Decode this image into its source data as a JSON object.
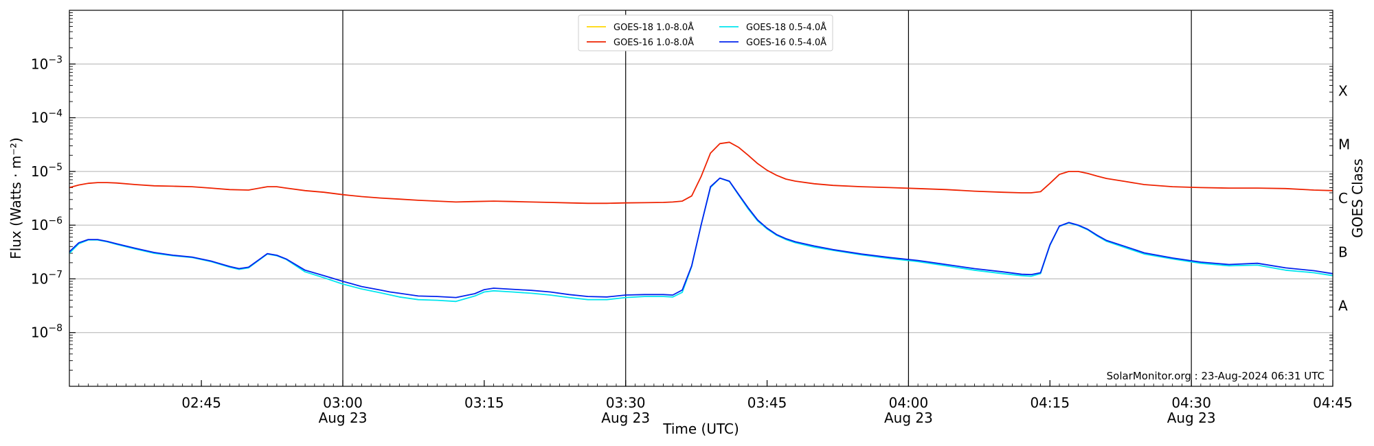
{
  "chart_data": {
    "type": "line",
    "xlabel": "Time (UTC)",
    "ylabel": "Flux (Watts · m⁻²)",
    "y2label": "GOES Class",
    "yscale": "log",
    "xlim": [
      "02:31",
      "04:45"
    ],
    "ylim": [
      1e-09,
      0.01
    ],
    "x_ticks": [
      {
        "t": "02:45",
        "date": ""
      },
      {
        "t": "03:00",
        "date": "Aug 23"
      },
      {
        "t": "03:15",
        "date": ""
      },
      {
        "t": "03:30",
        "date": "Aug 23"
      },
      {
        "t": "03:45",
        "date": ""
      },
      {
        "t": "04:00",
        "date": "Aug 23"
      },
      {
        "t": "04:15",
        "date": ""
      },
      {
        "t": "04:30",
        "date": "Aug 23"
      },
      {
        "t": "04:45",
        "date": ""
      }
    ],
    "day_lines": [
      "03:00",
      "03:30",
      "04:00",
      "04:30"
    ],
    "y_ticks": [
      {
        "label": "10",
        "exp": "−8",
        "value": 1e-08
      },
      {
        "label": "10",
        "exp": "−7",
        "value": 1e-07
      },
      {
        "label": "10",
        "exp": "−6",
        "value": 1e-06
      },
      {
        "label": "10",
        "exp": "−5",
        "value": 1e-05
      },
      {
        "label": "10",
        "exp": "−4",
        "value": 0.0001
      },
      {
        "label": "10",
        "exp": "−3",
        "value": 0.001
      }
    ],
    "goes_classes": [
      {
        "label": "A",
        "value": 3.16e-08
      },
      {
        "label": "B",
        "value": 3.16e-07
      },
      {
        "label": "C",
        "value": 3.16e-06
      },
      {
        "label": "M",
        "value": 3.16e-05
      },
      {
        "label": "X",
        "value": 0.000316
      }
    ],
    "grid": true,
    "legend_position": "top-center",
    "credit": "SolarMonitor.org : 23-Aug-2024 06:31 UTC",
    "series": [
      {
        "name": "GOES-18 1.0-8.0Å",
        "color": "#ffd700",
        "x": [],
        "values": []
      },
      {
        "name": "GOES-16 1.0-8.0Å",
        "color": "#ee2200",
        "x": [
          "02:31",
          "02:32",
          "02:33",
          "02:34",
          "02:35",
          "02:36",
          "02:38",
          "02:40",
          "02:42",
          "02:44",
          "02:46",
          "02:48",
          "02:50",
          "02:52",
          "02:53",
          "02:54",
          "02:56",
          "02:58",
          "03:00",
          "03:02",
          "03:04",
          "03:06",
          "03:08",
          "03:10",
          "03:12",
          "03:14",
          "03:16",
          "03:18",
          "03:20",
          "03:22",
          "03:24",
          "03:26",
          "03:28",
          "03:30",
          "03:32",
          "03:34",
          "03:35",
          "03:36",
          "03:37",
          "03:38",
          "03:39",
          "03:40",
          "03:41",
          "03:42",
          "03:43",
          "03:44",
          "03:45",
          "03:46",
          "03:47",
          "03:48",
          "03:50",
          "03:52",
          "03:55",
          "03:58",
          "04:01",
          "04:04",
          "04:07",
          "04:10",
          "04:12",
          "04:13",
          "04:14",
          "04:15",
          "04:16",
          "04:17",
          "04:18",
          "04:19",
          "04:20",
          "04:21",
          "04:23",
          "04:25",
          "04:28",
          "04:31",
          "04:34",
          "04:37",
          "04:40",
          "04:43",
          "04:45"
        ],
        "values": [
          5e-06,
          5.6e-06,
          6e-06,
          6.2e-06,
          6.2e-06,
          6.1e-06,
          5.7e-06,
          5.4e-06,
          5.3e-06,
          5.2e-06,
          4.9e-06,
          4.6e-06,
          4.5e-06,
          5.2e-06,
          5.2e-06,
          4.9e-06,
          4.4e-06,
          4.1e-06,
          3.7e-06,
          3.4e-06,
          3.2e-06,
          3.05e-06,
          2.9e-06,
          2.8e-06,
          2.7e-06,
          2.75e-06,
          2.8e-06,
          2.75e-06,
          2.7e-06,
          2.65e-06,
          2.6e-06,
          2.55e-06,
          2.55e-06,
          2.6e-06,
          2.62e-06,
          2.65e-06,
          2.7e-06,
          2.8e-06,
          3.5e-06,
          8e-06,
          2.2e-05,
          3.3e-05,
          3.5e-05,
          2.8e-05,
          2e-05,
          1.4e-05,
          1.05e-05,
          8.5e-06,
          7.2e-06,
          6.6e-06,
          5.9e-06,
          5.5e-06,
          5.2e-06,
          5e-06,
          4.8e-06,
          4.6e-06,
          4.3e-06,
          4.1e-06,
          4e-06,
          4e-06,
          4.2e-06,
          6e-06,
          8.8e-06,
          1e-05,
          1e-05,
          9.2e-06,
          8.2e-06,
          7.4e-06,
          6.5e-06,
          5.7e-06,
          5.2e-06,
          5e-06,
          4.9e-06,
          4.9e-06,
          4.8e-06,
          4.5e-06,
          4.4e-06
        ]
      },
      {
        "name": "GOES-18 0.5-4.0Å",
        "color": "#00e5ee",
        "x": [
          "02:31",
          "02:32",
          "02:33",
          "02:34",
          "02:35",
          "02:36",
          "02:38",
          "02:40",
          "02:42",
          "02:44",
          "02:46",
          "02:48",
          "02:49",
          "02:50",
          "02:52",
          "02:53",
          "02:54",
          "02:56",
          "02:58",
          "03:00",
          "03:02",
          "03:04",
          "03:06",
          "03:08",
          "03:10",
          "03:12",
          "03:14",
          "03:15",
          "03:16",
          "03:18",
          "03:20",
          "03:22",
          "03:24",
          "03:26",
          "03:28",
          "03:30",
          "03:32",
          "03:34",
          "03:35",
          "03:36",
          "03:37",
          "03:38",
          "03:39",
          "03:40",
          "03:41",
          "03:42",
          "03:43",
          "03:44",
          "03:45",
          "03:46",
          "03:47",
          "03:48",
          "03:50",
          "03:52",
          "03:55",
          "03:58",
          "04:01",
          "04:04",
          "04:07",
          "04:10",
          "04:12",
          "04:13",
          "04:14",
          "04:15",
          "04:16",
          "04:17",
          "04:18",
          "04:19",
          "04:20",
          "04:21",
          "04:23",
          "04:25",
          "04:28",
          "04:31",
          "04:34",
          "04:37",
          "04:40",
          "04:43",
          "04:45"
        ],
        "values": [
          3e-07,
          4.5e-07,
          5.3e-07,
          5.3e-07,
          4.9e-07,
          4.4e-07,
          3.6e-07,
          3e-07,
          2.7e-07,
          2.5e-07,
          2.1e-07,
          1.65e-07,
          1.5e-07,
          1.6e-07,
          2.9e-07,
          2.7e-07,
          2.3e-07,
          1.35e-07,
          1.05e-07,
          8e-08,
          6.5e-08,
          5.5e-08,
          4.6e-08,
          4.1e-08,
          4e-08,
          3.8e-08,
          4.8e-08,
          5.7e-08,
          6e-08,
          5.7e-08,
          5.4e-08,
          5e-08,
          4.5e-08,
          4.1e-08,
          4.1e-08,
          4.5e-08,
          4.7e-08,
          4.7e-08,
          4.6e-08,
          5.6e-08,
          1.7e-07,
          1e-06,
          5e-06,
          7.5e-06,
          6.5e-06,
          3.6e-06,
          2e-06,
          1.2e-06,
          8.5e-07,
          6.5e-07,
          5.4e-07,
          4.7e-07,
          3.9e-07,
          3.4e-07,
          2.8e-07,
          2.4e-07,
          2.1e-07,
          1.75e-07,
          1.45e-07,
          1.25e-07,
          1.15e-07,
          1.12e-07,
          1.25e-07,
          4.2e-07,
          9.5e-07,
          1.1e-06,
          9.8e-07,
          8.2e-07,
          6.3e-07,
          5e-07,
          3.8e-07,
          2.9e-07,
          2.35e-07,
          1.95e-07,
          1.75e-07,
          1.8e-07,
          1.45e-07,
          1.3e-07,
          1.15e-07
        ]
      },
      {
        "name": "GOES-16 0.5-4.0Å",
        "color": "#0022ee",
        "x": [
          "02:31",
          "02:32",
          "02:33",
          "02:34",
          "02:35",
          "02:36",
          "02:38",
          "02:40",
          "02:42",
          "02:44",
          "02:46",
          "02:48",
          "02:49",
          "02:50",
          "02:52",
          "02:53",
          "02:54",
          "02:56",
          "02:58",
          "03:00",
          "03:02",
          "03:04",
          "03:05",
          "03:06",
          "03:08",
          "03:10",
          "03:12",
          "03:14",
          "03:15",
          "03:16",
          "03:18",
          "03:20",
          "03:22",
          "03:24",
          "03:26",
          "03:28",
          "03:30",
          "03:32",
          "03:34",
          "03:35",
          "03:36",
          "03:37",
          "03:38",
          "03:39",
          "03:40",
          "03:41",
          "03:42",
          "03:43",
          "03:44",
          "03:45",
          "03:46",
          "03:47",
          "03:48",
          "03:50",
          "03:52",
          "03:55",
          "03:58",
          "04:01",
          "04:04",
          "04:07",
          "04:10",
          "04:12",
          "04:13",
          "04:14",
          "04:15",
          "04:16",
          "04:17",
          "04:18",
          "04:19",
          "04:20",
          "04:21",
          "04:23",
          "04:25",
          "04:28",
          "04:31",
          "04:34",
          "04:37",
          "04:40",
          "04:43",
          "04:45"
        ],
        "values": [
          3.2e-07,
          4.7e-07,
          5.4e-07,
          5.4e-07,
          5e-07,
          4.5e-07,
          3.7e-07,
          3.1e-07,
          2.75e-07,
          2.55e-07,
          2.15e-07,
          1.7e-07,
          1.55e-07,
          1.65e-07,
          2.95e-07,
          2.75e-07,
          2.35e-07,
          1.45e-07,
          1.15e-07,
          9e-08,
          7.2e-08,
          6.2e-08,
          5.7e-08,
          5.4e-08,
          4.8e-08,
          4.7e-08,
          4.5e-08,
          5.3e-08,
          6.3e-08,
          6.7e-08,
          6.4e-08,
          6.1e-08,
          5.7e-08,
          5.1e-08,
          4.7e-08,
          4.6e-08,
          5e-08,
          5.1e-08,
          5.1e-08,
          5e-08,
          6.2e-08,
          1.75e-07,
          1e-06,
          5.2e-06,
          7.5e-06,
          6.6e-06,
          3.7e-06,
          2.1e-06,
          1.25e-06,
          8.8e-07,
          6.7e-07,
          5.6e-07,
          4.9e-07,
          4.1e-07,
          3.5e-07,
          2.9e-07,
          2.5e-07,
          2.2e-07,
          1.85e-07,
          1.55e-07,
          1.35e-07,
          1.22e-07,
          1.2e-07,
          1.3e-07,
          4.3e-07,
          9.6e-07,
          1.12e-06,
          1e-06,
          8.4e-07,
          6.5e-07,
          5.2e-07,
          4e-07,
          3.05e-07,
          2.45e-07,
          2.05e-07,
          1.85e-07,
          1.95e-07,
          1.6e-07,
          1.42e-07,
          1.25e-07
        ]
      }
    ]
  }
}
